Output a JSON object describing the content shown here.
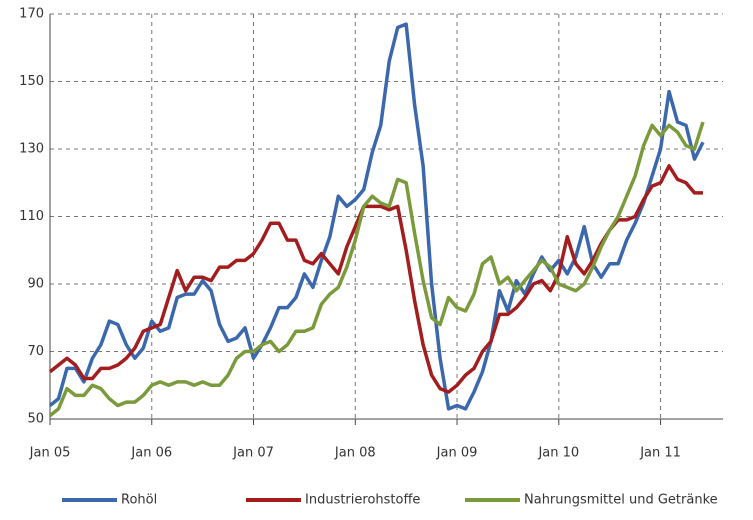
{
  "chart_data": {
    "type": "line",
    "x": [
      "Jan 05",
      null,
      null,
      null,
      null,
      null,
      null,
      null,
      null,
      null,
      null,
      null,
      "Jan 06",
      null,
      null,
      null,
      null,
      null,
      null,
      null,
      null,
      null,
      null,
      null,
      "Jan 07",
      null,
      null,
      null,
      null,
      null,
      null,
      null,
      null,
      null,
      null,
      null,
      "Jan 08",
      null,
      null,
      null,
      null,
      null,
      null,
      null,
      null,
      null,
      null,
      null,
      "Jan 09",
      null,
      null,
      null,
      null,
      null,
      null,
      null,
      null,
      null,
      null,
      null,
      "Jan 10",
      null,
      null,
      null,
      null,
      null,
      null,
      null,
      null,
      null,
      null,
      null,
      "Jan 11",
      null,
      null,
      null,
      null,
      null
    ],
    "series": [
      {
        "name": "Rohöl",
        "color": "#3b68ad",
        "values": [
          54,
          56,
          65,
          65,
          61,
          68,
          72,
          79,
          78,
          72,
          68,
          71,
          79,
          76,
          77,
          86,
          87,
          87,
          91,
          88,
          78,
          73,
          74,
          77,
          68,
          72,
          77,
          83,
          83,
          86,
          93,
          89,
          97,
          104,
          116,
          113,
          115,
          118,
          129,
          137,
          156,
          166,
          167,
          143,
          125,
          90,
          68,
          53,
          54,
          53,
          58,
          64,
          73,
          88,
          82,
          91,
          87,
          93,
          98,
          94,
          97,
          93,
          98,
          107,
          96,
          92,
          96,
          96,
          103,
          108,
          114,
          122,
          130,
          147,
          138,
          137,
          127,
          132
        ]
      },
      {
        "name": "Industrierohstoffe",
        "color": "#a31c1e",
        "values": [
          64,
          66,
          68,
          66,
          62,
          62,
          65,
          65,
          66,
          68,
          71,
          76,
          77,
          78,
          86,
          94,
          88,
          92,
          92,
          91,
          95,
          95,
          97,
          97,
          99,
          103,
          108,
          108,
          103,
          103,
          97,
          96,
          99,
          96,
          93,
          101,
          107,
          113,
          113,
          113,
          112,
          113,
          100,
          85,
          72,
          63,
          59,
          58,
          60,
          63,
          65,
          70,
          73,
          81,
          81,
          83,
          86,
          90,
          91,
          88,
          93,
          104,
          96,
          93,
          97,
          102,
          106,
          109,
          109,
          110,
          115,
          119,
          120,
          125,
          121,
          120,
          117,
          117
        ]
      },
      {
        "name": "Nahrungsmittel und Getränke",
        "color": "#7a9a3c",
        "values": [
          51,
          53,
          59,
          57,
          57,
          60,
          59,
          56,
          54,
          55,
          55,
          57,
          60,
          61,
          60,
          61,
          61,
          60,
          61,
          60,
          60,
          63,
          68,
          70,
          70,
          72,
          73,
          70,
          72,
          76,
          76,
          77,
          84,
          87,
          89,
          95,
          103,
          113,
          116,
          114,
          113,
          121,
          120,
          105,
          91,
          80,
          78,
          86,
          83,
          82,
          87,
          96,
          98,
          90,
          92,
          88,
          91,
          94,
          97,
          95,
          90,
          89,
          88,
          90,
          95,
          101,
          106,
          110,
          116,
          122,
          131,
          137,
          134,
          137,
          135,
          131,
          130,
          138
        ]
      }
    ],
    "ylim": [
      50,
      170
    ],
    "yticks": [
      50,
      70,
      90,
      110,
      130,
      150,
      170
    ],
    "grid": true,
    "legend": "bottom"
  }
}
